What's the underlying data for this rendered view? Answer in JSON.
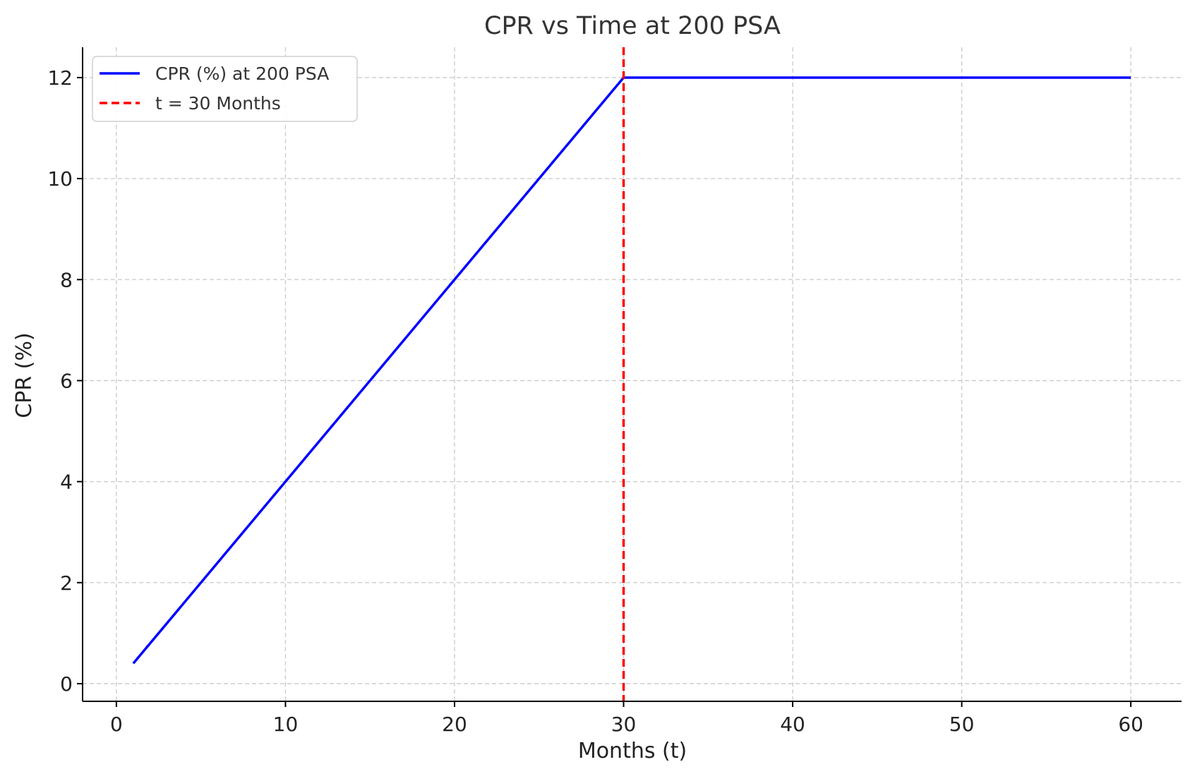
{
  "chart_data": {
    "type": "line",
    "title": "CPR vs Time at 200 PSA",
    "xlabel": "Months (t)",
    "ylabel": "CPR (%)",
    "xlim": [
      -2,
      63
    ],
    "ylim": [
      -0.35,
      12.6
    ],
    "xticks": [
      0,
      10,
      20,
      30,
      40,
      50,
      60
    ],
    "yticks": [
      0,
      2,
      4,
      6,
      8,
      10,
      12
    ],
    "grid": true,
    "legend_position": "top-left",
    "series": [
      {
        "name": "CPR (%) at 200 PSA",
        "color": "#0000ff",
        "style": "solid",
        "x": [
          1,
          30,
          60
        ],
        "y": [
          0.4,
          12,
          12
        ]
      }
    ],
    "annotations": [
      {
        "type": "vertical-line",
        "name": "t = 30 Months",
        "x": 30,
        "color": "#ff0000",
        "style": "dashed"
      }
    ]
  }
}
